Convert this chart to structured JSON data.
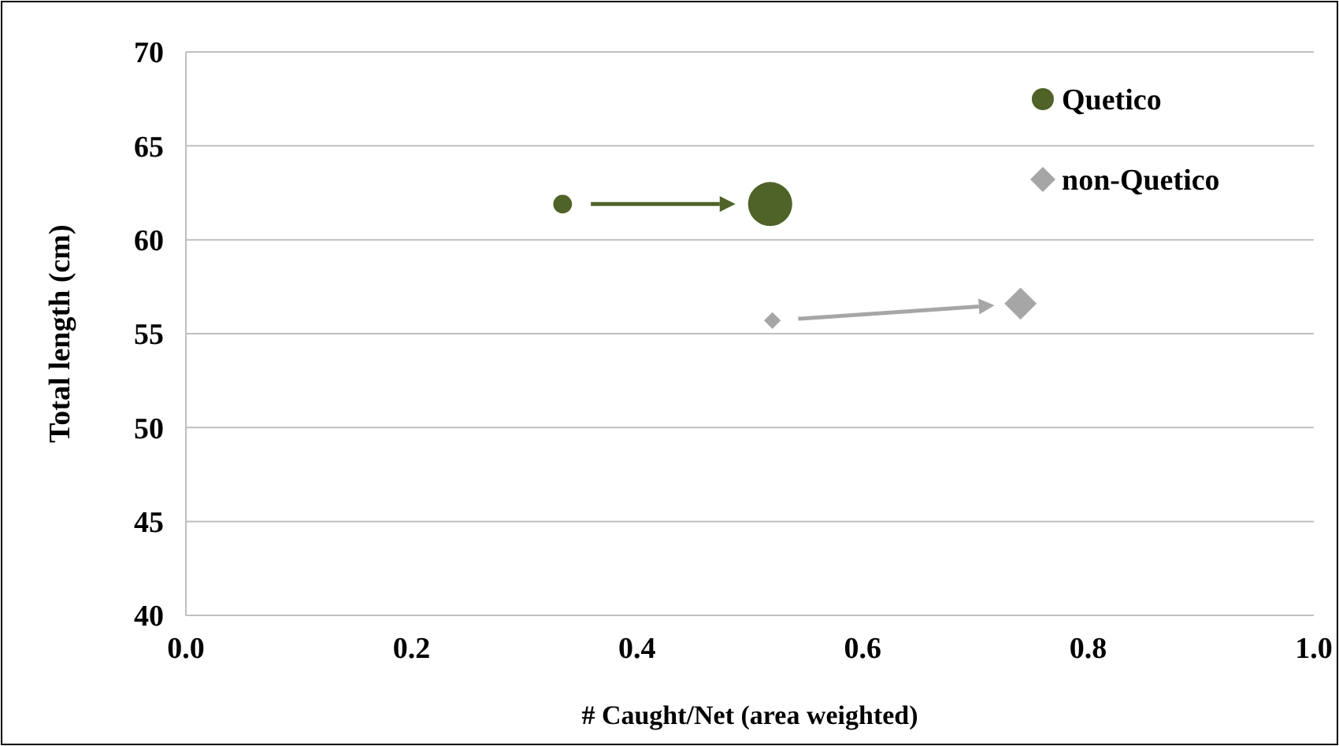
{
  "chart_data": {
    "type": "bubble",
    "xlabel": "# Caught/Net (area weighted)",
    "ylabel": "Total length (cm)",
    "xlim": [
      0,
      1
    ],
    "xticks": [
      {
        "value": 0,
        "label": "0.0"
      },
      {
        "value": 0.2,
        "label": "0.2"
      },
      {
        "value": 0.4,
        "label": "0.4"
      },
      {
        "value": 0.6,
        "label": "0.6"
      },
      {
        "value": 0.8,
        "label": "0.8"
      },
      {
        "value": 1,
        "label": "1.0"
      }
    ],
    "ylim": [
      40,
      70
    ],
    "yticks": [
      40,
      45,
      50,
      55,
      60,
      65,
      70
    ],
    "grid": "y",
    "legend": "top right",
    "series": [
      {
        "name": "Quetico",
        "color": "#4f6228",
        "marker": "circle",
        "x": [
          0.334,
          0.518
        ],
        "values": [
          61.9,
          61.9
        ],
        "sizes": [
          0.18,
          1
        ]
      },
      {
        "name": "non-Quetico",
        "color": "#a6a6a6",
        "marker": "diamond",
        "x": [
          0.52,
          0.74
        ],
        "values": [
          55.7,
          56.6
        ],
        "sizes": [
          0.1,
          0.37
        ]
      }
    ]
  }
}
